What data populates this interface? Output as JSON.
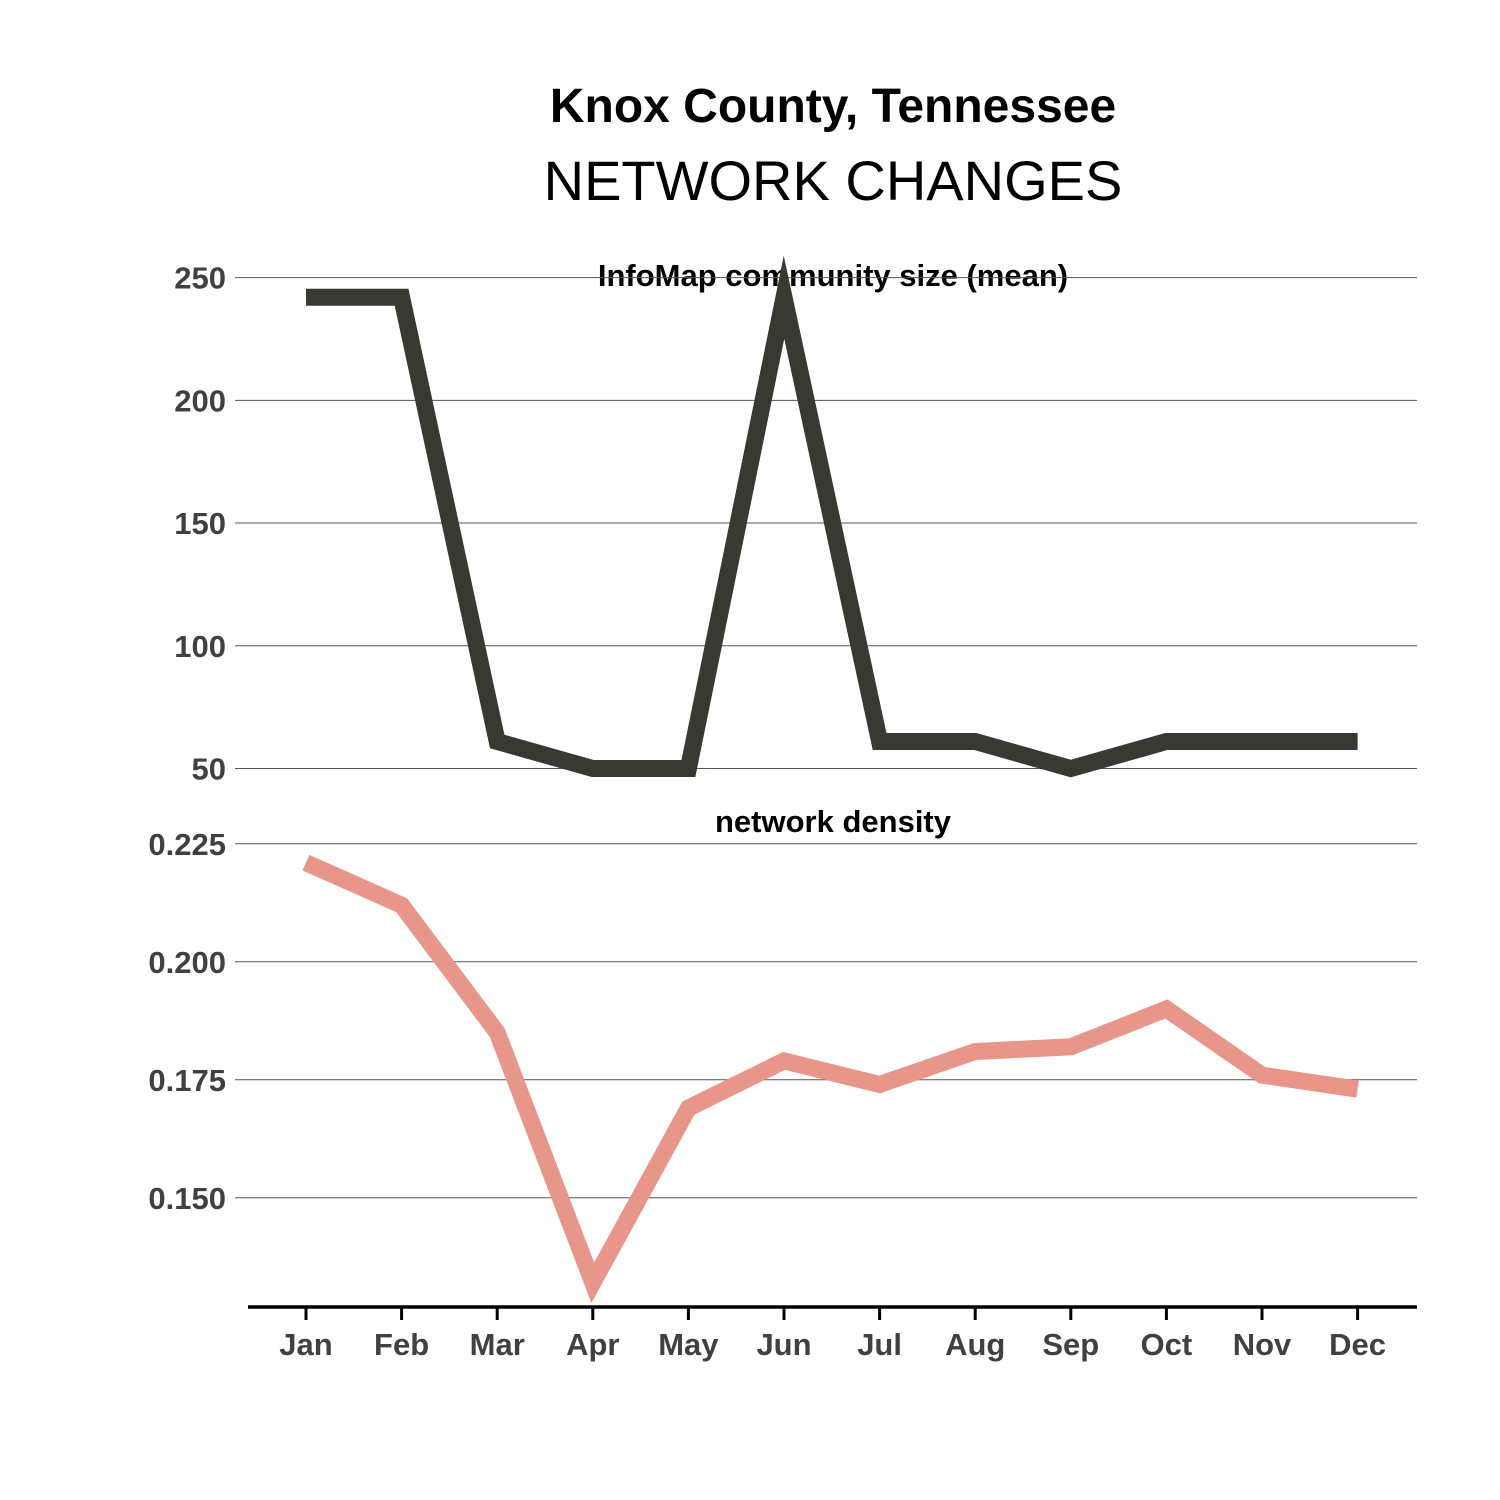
{
  "title": {
    "line1": "Knox County, Tennessee",
    "line2": "NETWORK CHANGES"
  },
  "chart_data": [
    {
      "type": "line",
      "title": "InfoMap community size (mean)",
      "xlabel": "",
      "ylabel": "",
      "categories": [
        "Jan",
        "Feb",
        "Mar",
        "Apr",
        "May",
        "Jun",
        "Jul",
        "Aug",
        "Sep",
        "Oct",
        "Nov",
        "Dec"
      ],
      "series": [
        {
          "color": "#3a3830",
          "values": [
            242,
            242,
            61,
            50,
            50,
            242,
            61,
            61,
            50,
            61,
            61,
            61
          ]
        }
      ],
      "ylim": [
        40,
        258
      ],
      "yticks": [
        50,
        100,
        150,
        200,
        250
      ],
      "yticklabels": [
        "50",
        "100",
        "150",
        "200",
        "250"
      ],
      "grid": true
    },
    {
      "type": "line",
      "title": "network density",
      "xlabel": "",
      "ylabel": "",
      "categories": [
        "Jan",
        "Feb",
        "Mar",
        "Apr",
        "May",
        "Jun",
        "Jul",
        "Aug",
        "Sep",
        "Oct",
        "Nov",
        "Dec"
      ],
      "series": [
        {
          "color": "#e8958a",
          "values": [
            0.221,
            0.212,
            0.185,
            0.132,
            0.169,
            0.179,
            0.174,
            0.181,
            0.182,
            0.19,
            0.176,
            0.173
          ]
        }
      ],
      "ylim": [
        0.1275,
        0.2275
      ],
      "yticks": [
        0.15,
        0.175,
        0.2,
        0.225
      ],
      "yticklabels": [
        "0.150",
        "0.175",
        "0.200",
        "0.225"
      ],
      "grid": true
    }
  ]
}
